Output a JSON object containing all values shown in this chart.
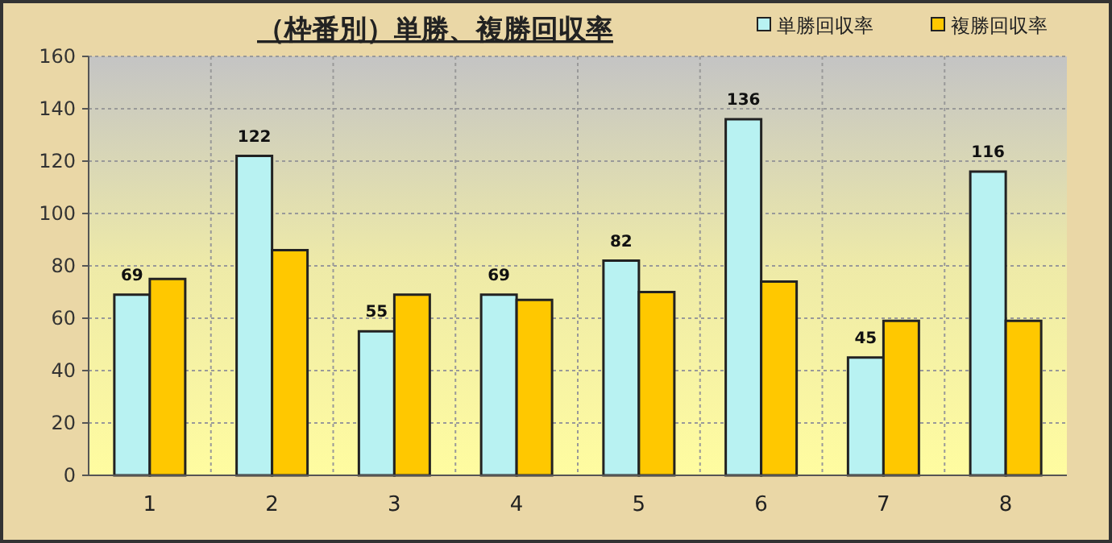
{
  "chart_data": {
    "type": "bar",
    "title": "（枠番別）単勝、複勝回収率",
    "categories": [
      "1",
      "2",
      "3",
      "4",
      "5",
      "6",
      "7",
      "8"
    ],
    "series": [
      {
        "name": "単勝回収率",
        "color": "#b8f2f2",
        "values": [
          69,
          122,
          55,
          69,
          82,
          136,
          45,
          116
        ],
        "value_labels": [
          "69",
          "122",
          "55",
          "69",
          "82",
          "136",
          "45",
          "116"
        ]
      },
      {
        "name": "複勝回収率",
        "color": "#ffc800",
        "values": [
          75,
          86,
          69,
          67,
          70,
          74,
          59,
          59
        ]
      }
    ],
    "ylim": [
      0,
      160
    ],
    "yticks": [
      0,
      20,
      40,
      60,
      80,
      100,
      120,
      140,
      160
    ],
    "grid": true,
    "legend": "top right"
  }
}
